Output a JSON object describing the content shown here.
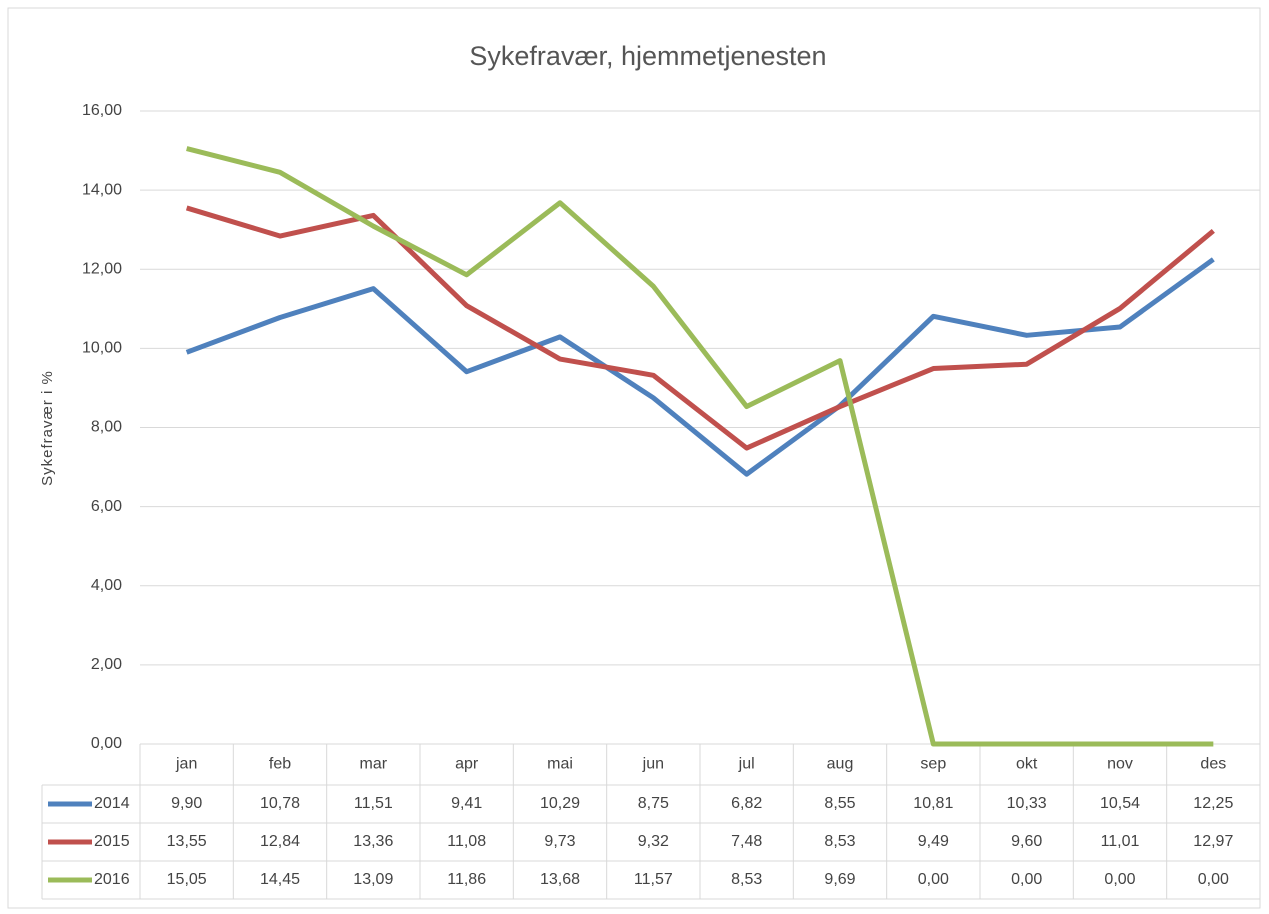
{
  "chart_data": {
    "type": "line",
    "title": "Sykefravær, hjemmetjenesten",
    "y_label": "Sykefravær i %",
    "categories": [
      "jan",
      "feb",
      "mar",
      "apr",
      "mai",
      "jun",
      "jul",
      "aug",
      "sep",
      "okt",
      "nov",
      "des"
    ],
    "series": [
      {
        "name": "2014",
        "color": "#4f81bd",
        "values": [
          9.9,
          10.78,
          11.51,
          9.41,
          10.29,
          8.75,
          6.82,
          8.55,
          10.81,
          10.33,
          10.54,
          12.25
        ],
        "value_labels": [
          "9,90",
          "10,78",
          "11,51",
          "9,41",
          "10,29",
          "8,75",
          "6,82",
          "8,55",
          "10,81",
          "10,33",
          "10,54",
          "12,25"
        ]
      },
      {
        "name": "2015",
        "color": "#c0504d",
        "values": [
          13.55,
          12.84,
          13.36,
          11.08,
          9.73,
          9.32,
          7.48,
          8.53,
          9.49,
          9.6,
          11.01,
          12.97
        ],
        "value_labels": [
          "13,55",
          "12,84",
          "13,36",
          "11,08",
          "9,73",
          "9,32",
          "7,48",
          "8,53",
          "9,49",
          "9,60",
          "11,01",
          "12,97"
        ]
      },
      {
        "name": "2016",
        "color": "#9bbb59",
        "values": [
          15.05,
          14.45,
          13.09,
          11.86,
          13.68,
          11.57,
          8.53,
          9.69,
          0,
          0,
          0,
          0
        ],
        "value_labels": [
          "15,05",
          "14,45",
          "13,09",
          "11,86",
          "13,68",
          "11,57",
          "8,53",
          "9,69",
          "0,00",
          "0,00",
          "0,00",
          "0,00"
        ]
      }
    ],
    "ylim": [
      0,
      16
    ],
    "yticks": [
      {
        "value": 0,
        "label": "0,00"
      },
      {
        "value": 2,
        "label": "2,00"
      },
      {
        "value": 4,
        "label": "4,00"
      },
      {
        "value": 6,
        "label": "6,00"
      },
      {
        "value": 8,
        "label": "8,00"
      },
      {
        "value": 10,
        "label": "10,00"
      },
      {
        "value": 12,
        "label": "12,00"
      },
      {
        "value": 14,
        "label": "14,00"
      },
      {
        "value": 16,
        "label": "16,00"
      }
    ],
    "grid": true
  }
}
